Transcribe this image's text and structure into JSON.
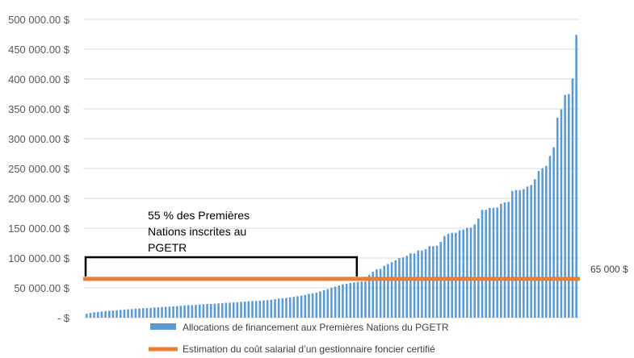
{
  "chart_data": {
    "type": "bar",
    "title": "",
    "xlabel": "",
    "ylabel": "",
    "ylim": [
      0,
      500000
    ],
    "grid": true,
    "legend_placement": "bottom",
    "y_ticks": [
      0,
      50000,
      100000,
      150000,
      200000,
      250000,
      300000,
      350000,
      400000,
      450000,
      500000
    ],
    "y_tick_labels": [
      "-  $",
      "50 000.00  $",
      "100 000.00  $",
      "150 000.00  $",
      "200 000.00  $",
      "250 000.00  $",
      "300 000.00  $",
      "350 000.00  $",
      "400 000.00  $",
      "450 000.00  $",
      "500 000.00  $"
    ],
    "series": [
      {
        "name": "Allocations de financement aux Premières Nations du PGETR",
        "type": "bar",
        "color": "#5b9bd5",
        "values": [
          6500,
          8000,
          9000,
          9500,
          10500,
          11000,
          11500,
          12000,
          12500,
          13000,
          13500,
          14000,
          14500,
          15000,
          15500,
          16000,
          16000,
          16500,
          17000,
          17500,
          18000,
          18000,
          18500,
          19000,
          19500,
          20000,
          20500,
          21000,
          21000,
          21500,
          22000,
          22500,
          23000,
          23000,
          23500,
          24000,
          24500,
          25000,
          25000,
          25500,
          26000,
          26500,
          27000,
          27500,
          28000,
          28000,
          28500,
          29000,
          29500,
          30000,
          31000,
          32000,
          32500,
          33000,
          34000,
          35000,
          36000,
          37000,
          38000,
          40000,
          41000,
          42000,
          44000,
          46000,
          48000,
          50000,
          52000,
          54000,
          56000,
          57000,
          58000,
          59000,
          60000,
          60500,
          61000,
          72000,
          77000,
          81000,
          82000,
          87000,
          90000,
          93000,
          96000,
          100000,
          101000,
          103600,
          107700,
          107700,
          112600,
          112600,
          114900,
          119800,
          119800,
          120700,
          127000,
          136900,
          140500,
          142300,
          142300,
          146400,
          147700,
          150400,
          150900,
          156300,
          166200,
          180600,
          180600,
          183800,
          184200,
          184700,
          190900,
          193200,
          194100,
          212200,
          213900,
          213900,
          215300,
          219800,
          222500,
          232000,
          245900,
          250400,
          254500,
          271200,
          285600,
          335100,
          349100,
          373400,
          374800,
          400900,
          473900
        ]
      },
      {
        "name": "Estimation du coût salarial d’un gestionnaire foncier certifié",
        "type": "line",
        "color": "#ed7d31",
        "value": 65000
      }
    ],
    "annotations": {
      "threshold_label": "65 000 $",
      "bracket_text_lines": [
        "55 % des Premières",
        "Nations inscrites au",
        "PGETR"
      ],
      "bracket_share_percent": 55
    }
  }
}
